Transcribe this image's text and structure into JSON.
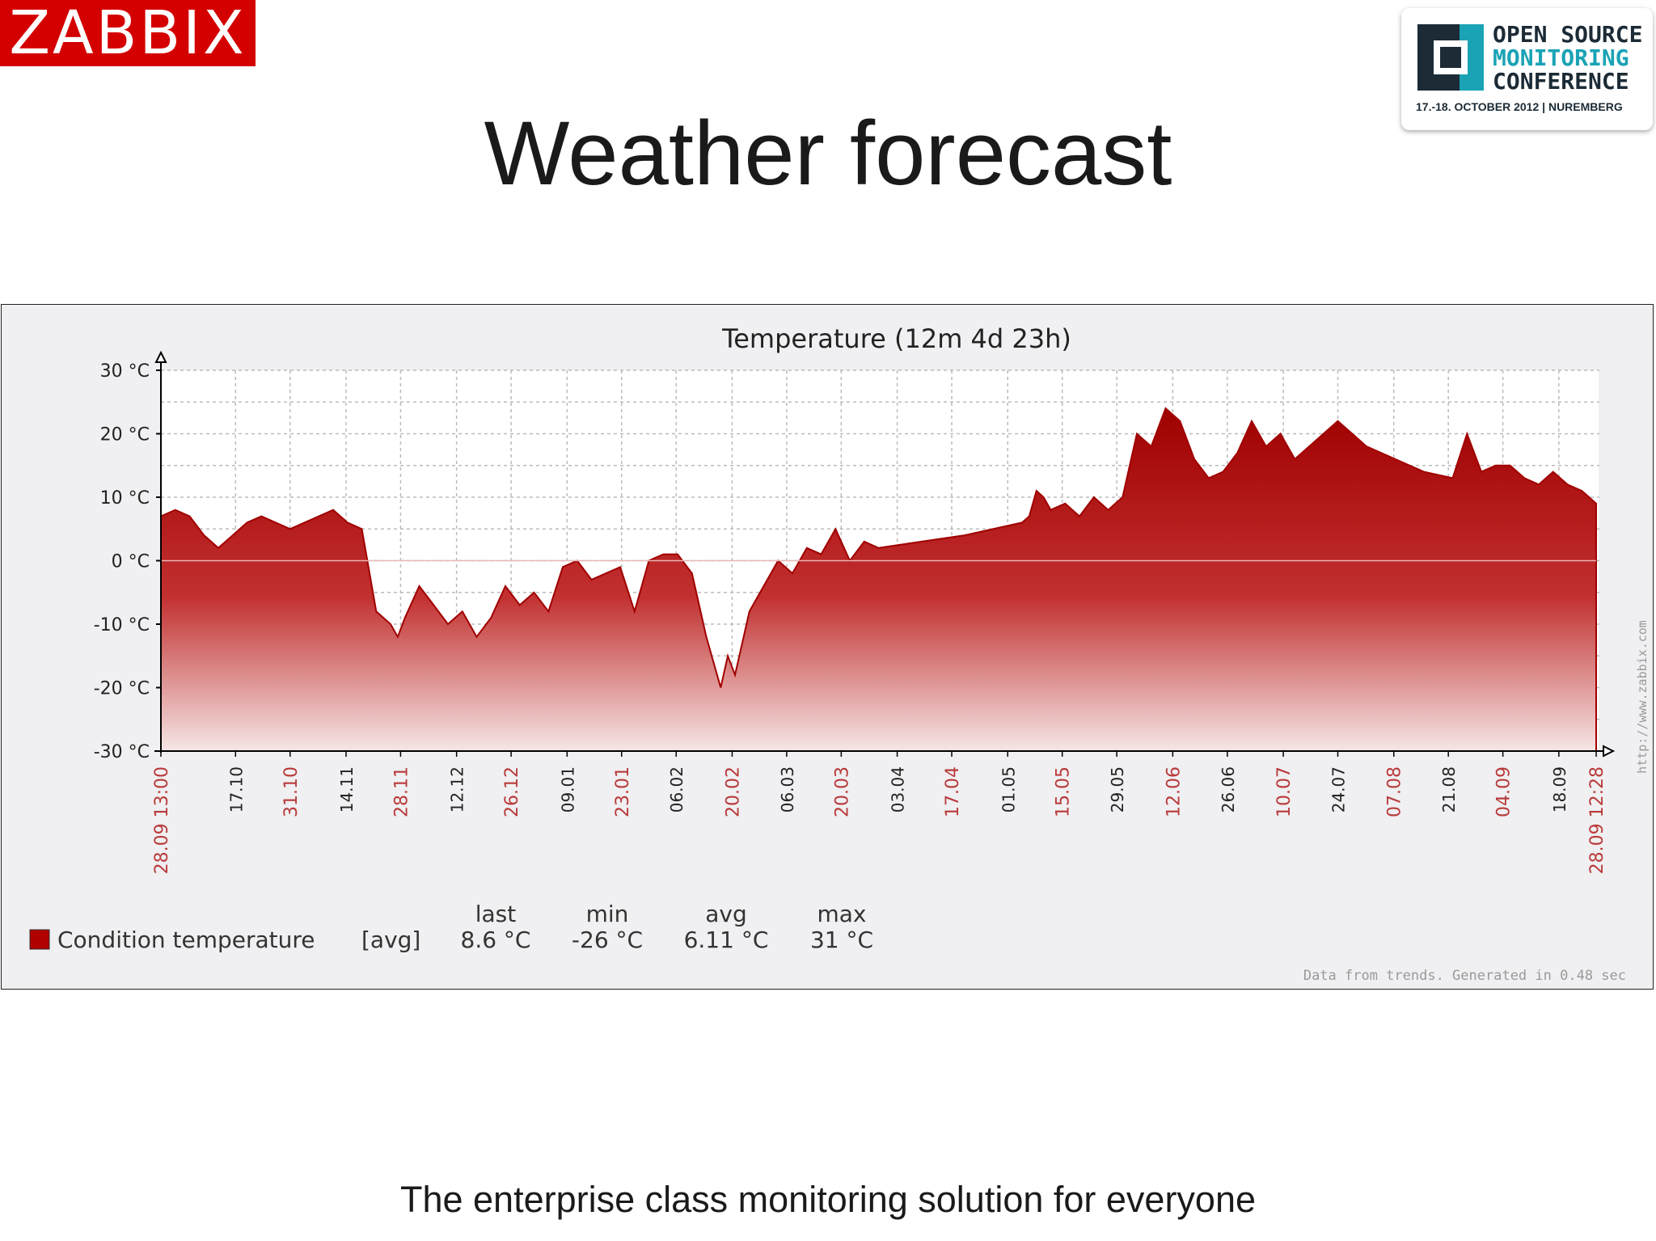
{
  "logo_text": "ZABBIX",
  "slide_title": "Weather forecast",
  "conference": {
    "line1": "OPEN SOURCE",
    "line2": "MONITORING",
    "line3": "CONFERENCE",
    "dates": "17.-18. OCTOBER 2012  |  NUREMBERG"
  },
  "footer_text": "The enterprise class monitoring solution for everyone",
  "colors": {
    "brand_red": "#d40000",
    "series_fill": "#b00000",
    "series_line": "#a00000",
    "graph_bg": "#f0eff1"
  },
  "chart_data": {
    "type": "area",
    "title": "Temperature  (12m 4d 23h)",
    "ylim": [
      -30,
      30
    ],
    "y_ticks": [
      "30 °C",
      "20 °C",
      "10 °C",
      "0 °C",
      "-10 °C",
      "-20 °C",
      "-30 °C"
    ],
    "y_tick_values": [
      30,
      20,
      10,
      0,
      -10,
      -20,
      -30
    ],
    "x_labels": [
      {
        "label": "28.09 13:00",
        "pos": 0,
        "red": true
      },
      {
        "label": "17.10",
        "pos": 0.052,
        "red": false
      },
      {
        "label": "31.10",
        "pos": 0.09,
        "red": true
      },
      {
        "label": "14.11",
        "pos": 0.129,
        "red": false
      },
      {
        "label": "28.11",
        "pos": 0.167,
        "red": true
      },
      {
        "label": "12.12",
        "pos": 0.206,
        "red": false
      },
      {
        "label": "26.12",
        "pos": 0.244,
        "red": true
      },
      {
        "label": "09.01",
        "pos": 0.283,
        "red": false
      },
      {
        "label": "23.01",
        "pos": 0.321,
        "red": true
      },
      {
        "label": "06.02",
        "pos": 0.359,
        "red": false
      },
      {
        "label": "20.02",
        "pos": 0.398,
        "red": true
      },
      {
        "label": "06.03",
        "pos": 0.436,
        "red": false
      },
      {
        "label": "20.03",
        "pos": 0.474,
        "red": true
      },
      {
        "label": "03.04",
        "pos": 0.513,
        "red": false
      },
      {
        "label": "17.04",
        "pos": 0.551,
        "red": true
      },
      {
        "label": "01.05",
        "pos": 0.59,
        "red": false
      },
      {
        "label": "15.05",
        "pos": 0.628,
        "red": true
      },
      {
        "label": "29.05",
        "pos": 0.666,
        "red": false
      },
      {
        "label": "12.06",
        "pos": 0.705,
        "red": true
      },
      {
        "label": "26.06",
        "pos": 0.743,
        "red": false
      },
      {
        "label": "10.07",
        "pos": 0.782,
        "red": true
      },
      {
        "label": "24.07",
        "pos": 0.82,
        "red": false
      },
      {
        "label": "07.08",
        "pos": 0.859,
        "red": true
      },
      {
        "label": "21.08",
        "pos": 0.897,
        "red": false
      },
      {
        "label": "04.09",
        "pos": 0.935,
        "red": true
      },
      {
        "label": "18.09",
        "pos": 0.974,
        "red": false
      },
      {
        "label": "28.09 12:28",
        "pos": 1,
        "red": true
      }
    ],
    "series": [
      {
        "name": "Condition temperature",
        "x": [
          0,
          0.01,
          0.02,
          0.03,
          0.04,
          0.05,
          0.06,
          0.07,
          0.08,
          0.09,
          0.1,
          0.11,
          0.12,
          0.13,
          0.14,
          0.15,
          0.16,
          0.165,
          0.17,
          0.18,
          0.19,
          0.2,
          0.21,
          0.22,
          0.23,
          0.24,
          0.25,
          0.26,
          0.27,
          0.28,
          0.29,
          0.3,
          0.31,
          0.32,
          0.33,
          0.34,
          0.35,
          0.36,
          0.37,
          0.38,
          0.385,
          0.39,
          0.395,
          0.4,
          0.41,
          0.42,
          0.43,
          0.44,
          0.45,
          0.46,
          0.47,
          0.48,
          0.49,
          0.5,
          0.53,
          0.56,
          0.6,
          0.605,
          0.61,
          0.615,
          0.62,
          0.63,
          0.64,
          0.65,
          0.66,
          0.67,
          0.68,
          0.69,
          0.7,
          0.71,
          0.72,
          0.73,
          0.74,
          0.75,
          0.76,
          0.77,
          0.78,
          0.79,
          0.8,
          0.81,
          0.82,
          0.83,
          0.84,
          0.85,
          0.86,
          0.88,
          0.9,
          0.91,
          0.92,
          0.93,
          0.94,
          0.95,
          0.96,
          0.97,
          0.98,
          0.99,
          1
        ],
        "values": [
          7,
          8,
          7,
          4,
          2,
          4,
          6,
          7,
          6,
          5,
          6,
          7,
          8,
          6,
          5,
          -8,
          -10,
          -12,
          -9,
          -4,
          -7,
          -10,
          -8,
          -12,
          -9,
          -4,
          -7,
          -5,
          -8,
          -1,
          0,
          -3,
          -2,
          -1,
          -8,
          0,
          1,
          1,
          -2,
          -12,
          -16,
          -20,
          -15,
          -18,
          -8,
          -4,
          0,
          -2,
          2,
          1,
          5,
          0,
          3,
          2,
          3,
          4,
          6,
          7,
          11,
          10,
          8,
          9,
          7,
          10,
          8,
          10,
          20,
          18,
          24,
          22,
          16,
          13,
          14,
          17,
          22,
          18,
          20,
          16,
          18,
          20,
          22,
          20,
          18,
          17,
          16,
          14,
          13,
          20,
          14,
          15,
          15,
          13,
          12,
          14,
          12,
          11,
          9
        ]
      }
    ],
    "legend": {
      "series_name": "Condition temperature",
      "func": "[avg]",
      "stats": [
        {
          "header": "last",
          "value": "8.6 °C"
        },
        {
          "header": "min",
          "value": "-26 °C"
        },
        {
          "header": "avg",
          "value": "6.11 °C"
        },
        {
          "header": "max",
          "value": "31 °C"
        }
      ]
    },
    "side_url": "http://www.zabbix.com",
    "generated_note": "Data from trends. Generated in 0.48 sec"
  }
}
